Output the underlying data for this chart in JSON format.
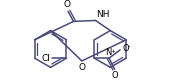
{
  "bg_color": "#ffffff",
  "line_color": "#4a4a7a",
  "line_width": 1.1,
  "figsize": [
    1.82,
    0.83
  ],
  "dpi": 100,
  "xlim": [
    0,
    182
  ],
  "ylim": [
    0,
    83
  ]
}
